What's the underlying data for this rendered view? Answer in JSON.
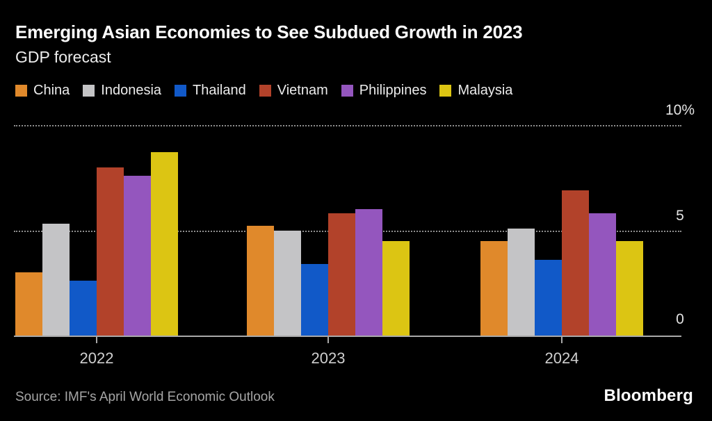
{
  "header": {
    "title": "Emerging Asian Economies to See Subdued Growth in 2023",
    "subtitle": "GDP forecast"
  },
  "legend": [
    {
      "label": "China",
      "color": "#E0892B"
    },
    {
      "label": "Indonesia",
      "color": "#C4C4C6"
    },
    {
      "label": "Thailand",
      "color": "#1159C8"
    },
    {
      "label": "Vietnam",
      "color": "#B2422A"
    },
    {
      "label": "Philippines",
      "color": "#9456BE"
    },
    {
      "label": "Malaysia",
      "color": "#DCC513"
    }
  ],
  "chart_data": {
    "type": "bar",
    "title": "Emerging Asian Economies to See Subdued Growth in 2023",
    "subtitle": "GDP forecast",
    "categories": [
      "2022",
      "2023",
      "2024"
    ],
    "series": [
      {
        "name": "China",
        "color": "#E0892B",
        "values": [
          3.0,
          5.2,
          4.5
        ]
      },
      {
        "name": "Indonesia",
        "color": "#C4C4C6",
        "values": [
          5.3,
          5.0,
          5.1
        ]
      },
      {
        "name": "Thailand",
        "color": "#1159C8",
        "values": [
          2.6,
          3.4,
          3.6
        ]
      },
      {
        "name": "Vietnam",
        "color": "#B2422A",
        "values": [
          8.0,
          5.8,
          6.9
        ]
      },
      {
        "name": "Philippines",
        "color": "#9456BE",
        "values": [
          7.6,
          6.0,
          5.8
        ]
      },
      {
        "name": "Malaysia",
        "color": "#DCC513",
        "values": [
          8.7,
          4.5,
          4.5
        ]
      }
    ],
    "unit": "%",
    "ylim": [
      0,
      10
    ],
    "y_axis": {
      "position": "right",
      "ticks": [
        0,
        5,
        10
      ],
      "tick_labels": [
        "0",
        "5",
        "10%"
      ],
      "gridline_values": [
        5,
        10
      ],
      "grid_style": "dotted"
    },
    "legend_position": "top"
  },
  "footer": {
    "source": "Source: IMF's April World Economic Outlook",
    "brand": "Bloomberg"
  }
}
